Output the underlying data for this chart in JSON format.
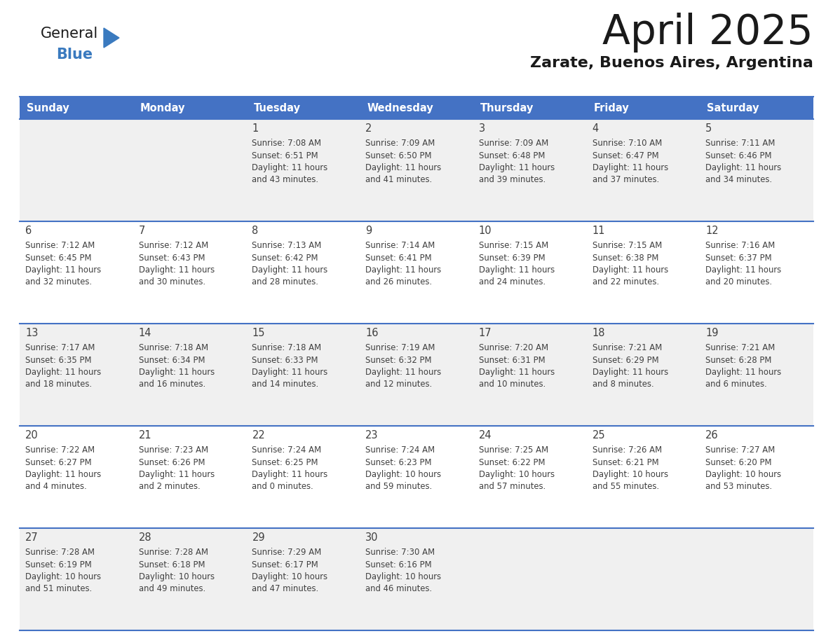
{
  "title": "April 2025",
  "subtitle": "Zarate, Buenos Aires, Argentina",
  "days_of_week": [
    "Sunday",
    "Monday",
    "Tuesday",
    "Wednesday",
    "Thursday",
    "Friday",
    "Saturday"
  ],
  "header_bg": "#4472C4",
  "header_text": "#FFFFFF",
  "row_bg_odd": "#F0F0F0",
  "row_bg_even": "#FFFFFF",
  "border_color": "#4472C4",
  "text_color": "#404040",
  "calendar": [
    [
      null,
      null,
      {
        "day": 1,
        "sunrise": "7:08 AM",
        "sunset": "6:51 PM",
        "daylight": "11 hours and 43 minutes."
      },
      {
        "day": 2,
        "sunrise": "7:09 AM",
        "sunset": "6:50 PM",
        "daylight": "11 hours and 41 minutes."
      },
      {
        "day": 3,
        "sunrise": "7:09 AM",
        "sunset": "6:48 PM",
        "daylight": "11 hours and 39 minutes."
      },
      {
        "day": 4,
        "sunrise": "7:10 AM",
        "sunset": "6:47 PM",
        "daylight": "11 hours and 37 minutes."
      },
      {
        "day": 5,
        "sunrise": "7:11 AM",
        "sunset": "6:46 PM",
        "daylight": "11 hours and 34 minutes."
      }
    ],
    [
      {
        "day": 6,
        "sunrise": "7:12 AM",
        "sunset": "6:45 PM",
        "daylight": "11 hours and 32 minutes."
      },
      {
        "day": 7,
        "sunrise": "7:12 AM",
        "sunset": "6:43 PM",
        "daylight": "11 hours and 30 minutes."
      },
      {
        "day": 8,
        "sunrise": "7:13 AM",
        "sunset": "6:42 PM",
        "daylight": "11 hours and 28 minutes."
      },
      {
        "day": 9,
        "sunrise": "7:14 AM",
        "sunset": "6:41 PM",
        "daylight": "11 hours and 26 minutes."
      },
      {
        "day": 10,
        "sunrise": "7:15 AM",
        "sunset": "6:39 PM",
        "daylight": "11 hours and 24 minutes."
      },
      {
        "day": 11,
        "sunrise": "7:15 AM",
        "sunset": "6:38 PM",
        "daylight": "11 hours and 22 minutes."
      },
      {
        "day": 12,
        "sunrise": "7:16 AM",
        "sunset": "6:37 PM",
        "daylight": "11 hours and 20 minutes."
      }
    ],
    [
      {
        "day": 13,
        "sunrise": "7:17 AM",
        "sunset": "6:35 PM",
        "daylight": "11 hours and 18 minutes."
      },
      {
        "day": 14,
        "sunrise": "7:18 AM",
        "sunset": "6:34 PM",
        "daylight": "11 hours and 16 minutes."
      },
      {
        "day": 15,
        "sunrise": "7:18 AM",
        "sunset": "6:33 PM",
        "daylight": "11 hours and 14 minutes."
      },
      {
        "day": 16,
        "sunrise": "7:19 AM",
        "sunset": "6:32 PM",
        "daylight": "11 hours and 12 minutes."
      },
      {
        "day": 17,
        "sunrise": "7:20 AM",
        "sunset": "6:31 PM",
        "daylight": "11 hours and 10 minutes."
      },
      {
        "day": 18,
        "sunrise": "7:21 AM",
        "sunset": "6:29 PM",
        "daylight": "11 hours and 8 minutes."
      },
      {
        "day": 19,
        "sunrise": "7:21 AM",
        "sunset": "6:28 PM",
        "daylight": "11 hours and 6 minutes."
      }
    ],
    [
      {
        "day": 20,
        "sunrise": "7:22 AM",
        "sunset": "6:27 PM",
        "daylight": "11 hours and 4 minutes."
      },
      {
        "day": 21,
        "sunrise": "7:23 AM",
        "sunset": "6:26 PM",
        "daylight": "11 hours and 2 minutes."
      },
      {
        "day": 22,
        "sunrise": "7:24 AM",
        "sunset": "6:25 PM",
        "daylight": "11 hours and 0 minutes."
      },
      {
        "day": 23,
        "sunrise": "7:24 AM",
        "sunset": "6:23 PM",
        "daylight": "10 hours and 59 minutes."
      },
      {
        "day": 24,
        "sunrise": "7:25 AM",
        "sunset": "6:22 PM",
        "daylight": "10 hours and 57 minutes."
      },
      {
        "day": 25,
        "sunrise": "7:26 AM",
        "sunset": "6:21 PM",
        "daylight": "10 hours and 55 minutes."
      },
      {
        "day": 26,
        "sunrise": "7:27 AM",
        "sunset": "6:20 PM",
        "daylight": "10 hours and 53 minutes."
      }
    ],
    [
      {
        "day": 27,
        "sunrise": "7:28 AM",
        "sunset": "6:19 PM",
        "daylight": "10 hours and 51 minutes."
      },
      {
        "day": 28,
        "sunrise": "7:28 AM",
        "sunset": "6:18 PM",
        "daylight": "10 hours and 49 minutes."
      },
      {
        "day": 29,
        "sunrise": "7:29 AM",
        "sunset": "6:17 PM",
        "daylight": "10 hours and 47 minutes."
      },
      {
        "day": 30,
        "sunrise": "7:30 AM",
        "sunset": "6:16 PM",
        "daylight": "10 hours and 46 minutes."
      },
      null,
      null,
      null
    ]
  ],
  "logo_general_color": "#1a1a1a",
  "logo_blue_color": "#3a7abf",
  "logo_triangle_color": "#3a7abf"
}
